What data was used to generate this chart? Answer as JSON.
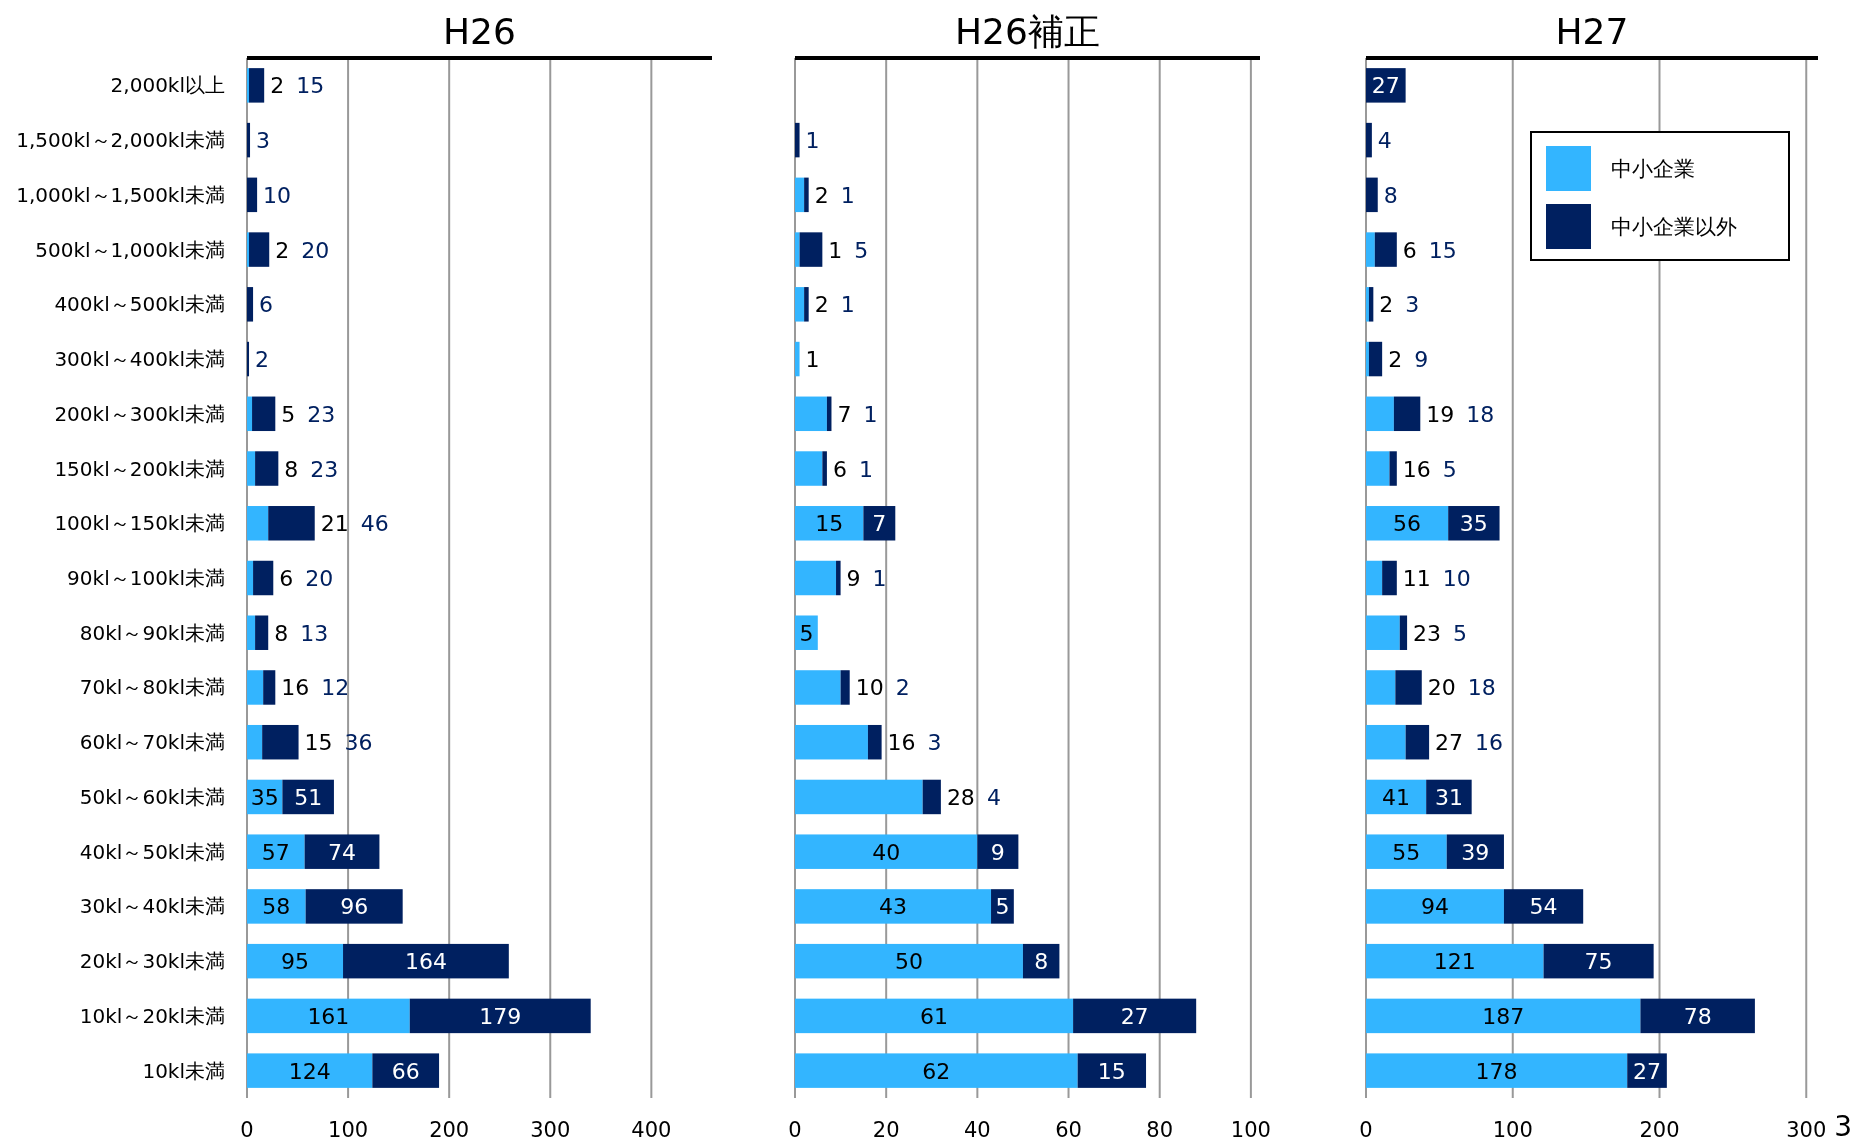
{
  "chart_data": [
    {
      "type": "bar",
      "orientation": "horizontal",
      "stacked": true,
      "title": "H26",
      "categories": [
        "2,000kl以上",
        "1,500kl～2,000kl未満",
        "1,000kl～1,500kl未満",
        "500kl～1,000kl未満",
        "400kl～500kl未満",
        "300kl～400kl未満",
        "200kl～300kl未満",
        "150kl～200kl未満",
        "100kl～150kl未満",
        "90kl～100kl未満",
        "80kl～90kl未満",
        "70kl～80kl未満",
        "60kl～70kl未満",
        "50kl～60kl未満",
        "40kl～50kl未満",
        "30kl～40kl未満",
        "20kl～30kl未満",
        "10kl～20kl未満",
        "10kl未満"
      ],
      "series": [
        {
          "color": "#33b5ff",
          "values": [
            2,
            null,
            null,
            2,
            null,
            null,
            5,
            8,
            21,
            6,
            8,
            16,
            15,
            35,
            57,
            58,
            95,
            161,
            124
          ]
        },
        {
          "color": "#002060",
          "values": [
            15,
            3,
            10,
            20,
            6,
            2,
            23,
            23,
            46,
            20,
            13,
            12,
            36,
            51,
            74,
            96,
            164,
            179,
            66
          ]
        }
      ],
      "xlim": [
        0,
        460
      ],
      "xticks": [
        0,
        100,
        200,
        300,
        400
      ],
      "grid": "x",
      "data_labels": true,
      "legend": false
    },
    {
      "type": "bar",
      "orientation": "horizontal",
      "stacked": true,
      "title": "H26補正",
      "categories": [
        null,
        null,
        null,
        null,
        null,
        null,
        null,
        null,
        null,
        null,
        null,
        null,
        null,
        null,
        null,
        null,
        null,
        null,
        null
      ],
      "series": [
        {
          "color": "#33b5ff",
          "values": [
            null,
            null,
            2,
            1,
            2,
            1,
            7,
            6,
            15,
            9,
            5,
            10,
            16,
            28,
            40,
            43,
            50,
            61,
            62
          ]
        },
        {
          "color": "#002060",
          "values": [
            null,
            1,
            1,
            5,
            1,
            null,
            1,
            1,
            7,
            1,
            null,
            2,
            3,
            4,
            9,
            5,
            8,
            27,
            15
          ]
        }
      ],
      "xlim": [
        0,
        102
      ],
      "xticks": [
        0,
        20,
        40,
        60,
        80,
        100
      ],
      "grid": "x",
      "data_labels": true,
      "legend": false
    },
    {
      "type": "bar",
      "orientation": "horizontal",
      "stacked": true,
      "title": "H27",
      "categories": [
        null,
        null,
        null,
        null,
        null,
        null,
        null,
        null,
        null,
        null,
        null,
        null,
        null,
        null,
        null,
        null,
        null,
        null,
        null
      ],
      "series": [
        {
          "name": "中小企業",
          "color": "#33b5ff",
          "values": [
            null,
            null,
            null,
            6,
            2,
            2,
            19,
            16,
            56,
            11,
            23,
            20,
            27,
            41,
            55,
            94,
            121,
            187,
            178
          ]
        },
        {
          "name": "中小企業以外",
          "color": "#002060",
          "values": [
            27,
            4,
            8,
            15,
            3,
            9,
            18,
            5,
            35,
            10,
            5,
            18,
            16,
            31,
            39,
            54,
            75,
            78,
            27
          ]
        }
      ],
      "xlim": [
        0,
        308
      ],
      "xticks": [
        0,
        100,
        200,
        300
      ],
      "grid": "x",
      "data_labels": true,
      "legend": "top right",
      "annotations": [
        "3"
      ]
    }
  ]
}
